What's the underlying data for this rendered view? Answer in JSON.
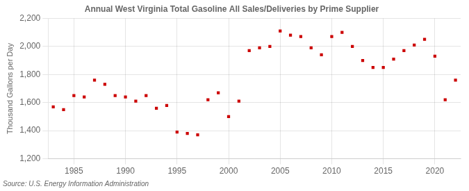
{
  "chart_data": {
    "type": "scatter",
    "title": "Annual West Virginia Total Gasoline All Sales/Deliveries by Prime Supplier",
    "ylabel": "Thousand Gallons per Day",
    "source": "Source: U.S. Energy Information Administration",
    "x": [
      1983,
      1984,
      1985,
      1986,
      1987,
      1988,
      1989,
      1990,
      1991,
      1992,
      1993,
      1994,
      1995,
      1996,
      1997,
      1998,
      1999,
      2000,
      2001,
      2002,
      2003,
      2004,
      2005,
      2006,
      2007,
      2008,
      2009,
      2010,
      2011,
      2012,
      2013,
      2014,
      2015,
      2016,
      2017,
      2018,
      2019,
      2020,
      2021,
      2022
    ],
    "values": [
      1570,
      1550,
      1650,
      1640,
      1760,
      1730,
      1650,
      1640,
      1610,
      1650,
      1560,
      1580,
      1390,
      1380,
      1370,
      1620,
      1670,
      1500,
      1610,
      1970,
      1990,
      2000,
      2110,
      2080,
      2070,
      1990,
      1940,
      2070,
      2100,
      2000,
      1900,
      1850,
      1850,
      1910,
      1970,
      2010,
      2050,
      1930,
      1620,
      1760
    ],
    "color": "#cc0000",
    "marker": "square",
    "xlim": [
      1982.5,
      2022.5
    ],
    "xticks": [
      1985,
      1990,
      1995,
      2000,
      2005,
      2010,
      2015,
      2020
    ],
    "ylim": [
      1200,
      2200
    ],
    "yticks": [
      {
        "value": 1200,
        "label": "1,200"
      },
      {
        "value": 1400,
        "label": "1,400"
      },
      {
        "value": 1600,
        "label": "1,600"
      },
      {
        "value": 1800,
        "label": "1,800"
      },
      {
        "value": 2000,
        "label": "2,000"
      },
      {
        "value": 2200,
        "label": "2,200"
      }
    ],
    "grid": true
  }
}
